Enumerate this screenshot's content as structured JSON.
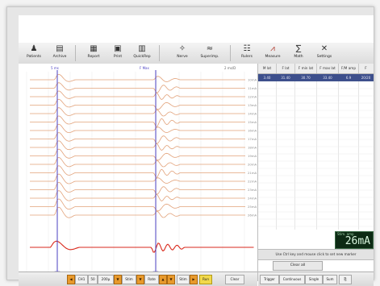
{
  "toolbar": {
    "buttons": [
      {
        "icon": "patients-icon",
        "glyph": "♟",
        "label": "Patients"
      },
      {
        "icon": "archive-icon",
        "glyph": "▤",
        "label": "Archive"
      },
      {
        "icon": "report-icon",
        "glyph": "▦",
        "label": "Report"
      },
      {
        "icon": "print-icon",
        "glyph": "▣",
        "label": "Print"
      },
      {
        "icon": "quickrep-icon",
        "glyph": "▥",
        "label": "QuickRep"
      },
      {
        "icon": "nerve-icon",
        "glyph": "✧",
        "label": "Nerve"
      },
      {
        "icon": "superimp-icon",
        "glyph": "≈",
        "label": "Superimp."
      },
      {
        "icon": "rulers-icon",
        "glyph": "☷",
        "label": "Rulers"
      },
      {
        "icon": "measure-icon",
        "glyph": "⩘",
        "label": "Measure"
      },
      {
        "icon": "math-icon",
        "glyph": "∑",
        "label": "Math"
      },
      {
        "icon": "settings-icon",
        "glyph": "✕",
        "label": "Settings"
      }
    ]
  },
  "traces": {
    "left_marker": "5 ms",
    "mid_marker": "F Max",
    "scale": "2 ms/D",
    "stim_levels": [
      "10mA",
      "11mA",
      "12mA",
      "13mA",
      "14mA",
      "15mA",
      "16mA",
      "17mA",
      "18mA",
      "19mA",
      "20mA",
      "21mA",
      "22mA",
      "23mA",
      "24mA",
      "25mA",
      "26mA"
    ],
    "trace_color": "#e2a27a",
    "emg_color": "#d9291c",
    "cursor_color": "#4a3fc2",
    "levels": [
      0.2,
      0.25,
      0.3,
      0.35,
      0.4,
      0.45,
      0.5,
      0.55,
      0.6,
      0.65,
      0.7,
      0.75,
      0.8,
      0.85,
      0.9,
      0.95,
      1.0
    ]
  },
  "table": {
    "headers": [
      "M lat",
      "F lat",
      "F min lat",
      "F max lat",
      "F/M amp",
      "F"
    ],
    "row": [
      "3.40",
      "31.40",
      "30.70",
      "33.40",
      "6.9",
      "20/20"
    ]
  },
  "stim": {
    "label": "Stim. amp",
    "value": "26mA"
  },
  "hint": "Use Ctrl key and mouse click to set new marker",
  "clear_all": "Clear all",
  "report": "Report",
  "bottom": {
    "ch_label": "CH1",
    "ch_num": "50",
    "sens": "200µ",
    "time": "Stim",
    "freq": "Rate",
    "stim_btn": "Stim",
    "run_btn": "Run",
    "clear_btn": "Clear",
    "trigger": "Trigger",
    "mode": "Continuous",
    "single": "Single",
    "sum": "Sum"
  }
}
